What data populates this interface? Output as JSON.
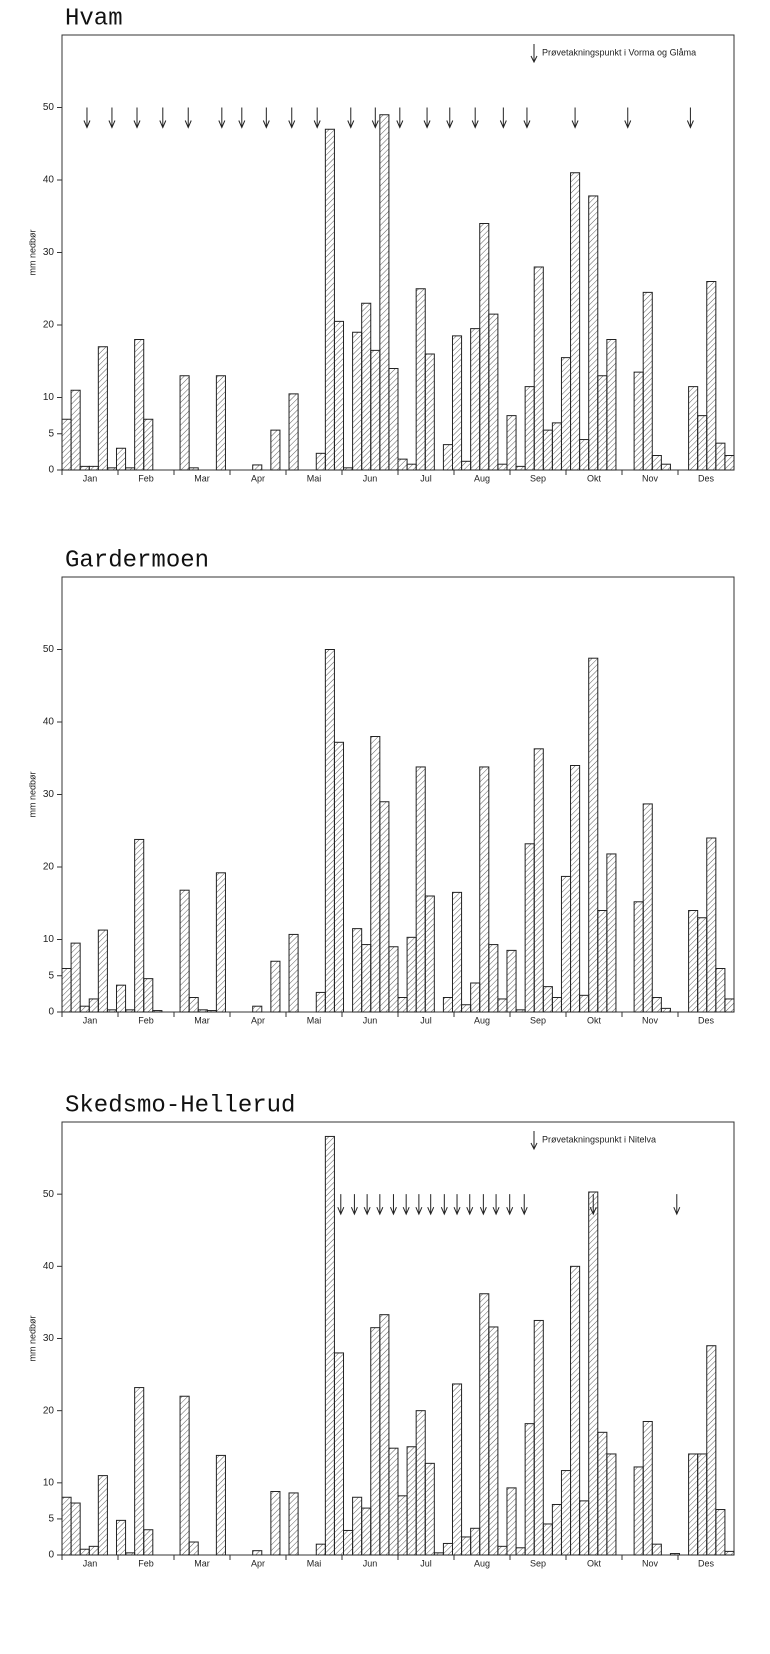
{
  "chart_data": [
    {
      "type": "bar",
      "title": "Hvam",
      "y_label": "mm nedbør",
      "months": [
        "Jan",
        "Feb",
        "Mar",
        "Apr",
        "Mai",
        "Jun",
        "Jul",
        "Aug",
        "Sep",
        "Okt",
        "Nov",
        "Des"
      ],
      "values": [
        7,
        11,
        0.5,
        0.5,
        17,
        0.3,
        3,
        0.3,
        18,
        7,
        0,
        0,
        0,
        13,
        0.3,
        0,
        0,
        13,
        0,
        0,
        0,
        0.7,
        0,
        5.5,
        0,
        10.5,
        0,
        0,
        2.3,
        47,
        20.5,
        0.3,
        19,
        23,
        16.5,
        49,
        14,
        1.5,
        0.8,
        25,
        16,
        0,
        3.5,
        18.5,
        1.2,
        19.5,
        34,
        21.5,
        0.8,
        7.5,
        0.5,
        11.5,
        28,
        5.5,
        6.5,
        15.5,
        41,
        4.2,
        37.8,
        13,
        18,
        0,
        0,
        13.5,
        24.5,
        2,
        0.8,
        0,
        0,
        11.5,
        7.5,
        26,
        3.7,
        2
      ],
      "xlim": [
        0,
        74
      ],
      "ylim": [
        0,
        60
      ],
      "yticks": [
        0,
        5,
        10,
        20,
        30,
        40,
        50
      ],
      "markers": {
        "label": "Prøvetakningspunkt i Vorma og Glåma",
        "x": [
          2.75,
          5.5,
          8.26,
          11.1,
          13.9,
          17.6,
          19.8,
          22.5,
          25.3,
          28.1,
          31.8,
          34.5,
          37.2,
          40.2,
          42.7,
          45.5,
          48.6,
          51.2,
          56.5,
          62.3,
          69.2
        ]
      }
    },
    {
      "type": "bar",
      "title": "Gardermoen",
      "y_label": "mm nedbør",
      "months": [
        "Jan",
        "Feb",
        "Mar",
        "Apr",
        "Mai",
        "Jun",
        "Jul",
        "Aug",
        "Sep",
        "Okt",
        "Nov",
        "Des"
      ],
      "values": [
        6,
        9.5,
        0.8,
        1.8,
        11.3,
        0.3,
        3.7,
        0.3,
        23.8,
        4.6,
        0.2,
        0,
        0,
        16.8,
        2,
        0.3,
        0.2,
        19.2,
        0,
        0,
        0,
        0.8,
        0,
        7,
        0,
        10.7,
        0,
        0,
        2.7,
        50,
        37.2,
        0,
        11.5,
        9.3,
        38,
        29,
        9,
        2,
        10.3,
        33.8,
        16,
        0,
        2,
        16.5,
        1,
        4,
        33.8,
        9.3,
        1.8,
        8.5,
        0.3,
        23.2,
        36.3,
        3.5,
        2,
        18.7,
        34,
        2.3,
        48.8,
        14,
        21.8,
        0,
        0,
        15.2,
        28.7,
        2,
        0.5,
        0,
        0,
        14,
        13,
        24,
        6,
        1.8
      ],
      "xlim": [
        0,
        74
      ],
      "ylim": [
        0,
        60
      ],
      "yticks": [
        0,
        5,
        10,
        20,
        30,
        40,
        50
      ]
    },
    {
      "type": "bar",
      "title": "Skedsmo-Hellerud",
      "y_label": "mm nedbør",
      "months": [
        "Jan",
        "Feb",
        "Mar",
        "Apr",
        "Mai",
        "Jun",
        "Jul",
        "Aug",
        "Sep",
        "Okt",
        "Nov",
        "Des"
      ],
      "values": [
        8,
        7.2,
        0.8,
        1.2,
        11,
        0,
        4.8,
        0.3,
        23.2,
        3.5,
        0,
        0,
        0,
        22,
        1.8,
        0,
        0,
        13.8,
        0,
        0,
        0,
        0.6,
        0,
        8.8,
        0,
        8.6,
        0,
        0,
        1.5,
        58,
        28,
        3.4,
        8,
        6.5,
        31.5,
        33.3,
        14.8,
        8.2,
        15,
        20,
        12.7,
        0.3,
        1.6,
        23.7,
        2.5,
        3.7,
        36.2,
        31.6,
        1.2,
        9.3,
        1,
        18.2,
        32.5,
        4.3,
        7,
        11.7,
        40,
        7.5,
        50.3,
        17,
        14,
        0,
        0,
        12.2,
        18.5,
        1.5,
        0,
        0.2,
        0,
        14,
        14,
        29,
        6.3,
        0.5
      ],
      "xlim": [
        0,
        74
      ],
      "ylim": [
        0,
        60
      ],
      "yticks": [
        0,
        5,
        10,
        20,
        30,
        40,
        50
      ],
      "markers": {
        "label": "Prøvetakningspunkt i Nitelva",
        "x": [
          30.7,
          32.2,
          33.6,
          35.0,
          36.5,
          37.9,
          39.3,
          40.6,
          42.1,
          43.5,
          44.9,
          46.4,
          47.8,
          49.3,
          50.9,
          58.5,
          67.7
        ]
      }
    }
  ]
}
